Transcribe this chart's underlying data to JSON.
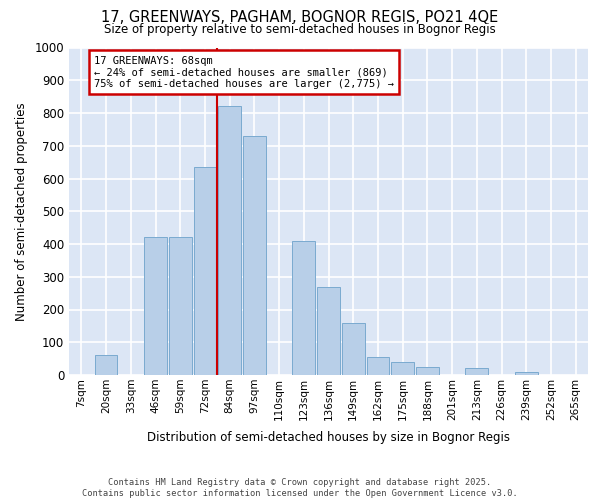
{
  "title": "17, GREENWAYS, PAGHAM, BOGNOR REGIS, PO21 4QE",
  "subtitle": "Size of property relative to semi-detached houses in Bognor Regis",
  "xlabel": "Distribution of semi-detached houses by size in Bognor Regis",
  "ylabel": "Number of semi-detached properties",
  "bar_labels": [
    "7sqm",
    "20sqm",
    "33sqm",
    "46sqm",
    "59sqm",
    "72sqm",
    "84sqm",
    "97sqm",
    "110sqm",
    "123sqm",
    "136sqm",
    "149sqm",
    "162sqm",
    "175sqm",
    "188sqm",
    "201sqm",
    "213sqm",
    "226sqm",
    "239sqm",
    "252sqm",
    "265sqm"
  ],
  "bar_values": [
    0,
    60,
    0,
    420,
    420,
    635,
    820,
    730,
    0,
    410,
    270,
    160,
    55,
    40,
    25,
    0,
    20,
    0,
    10,
    0,
    0
  ],
  "bar_color": "#b8cfe8",
  "bar_edge_color": "#7aaad0",
  "property_label": "17 GREENWAYS: 68sqm",
  "pct_smaller": 24,
  "pct_larger": 75,
  "n_smaller": 869,
  "n_larger": 2775,
  "annotation_box_color": "#ffffff",
  "annotation_box_edge": "#cc0000",
  "vline_color": "#cc0000",
  "background_color": "#dce6f5",
  "grid_color": "#ffffff",
  "ylim": [
    0,
    1000
  ],
  "yticks": [
    0,
    100,
    200,
    300,
    400,
    500,
    600,
    700,
    800,
    900,
    1000
  ],
  "vline_x": 5.5,
  "footer_line1": "Contains HM Land Registry data © Crown copyright and database right 2025.",
  "footer_line2": "Contains public sector information licensed under the Open Government Licence v3.0."
}
